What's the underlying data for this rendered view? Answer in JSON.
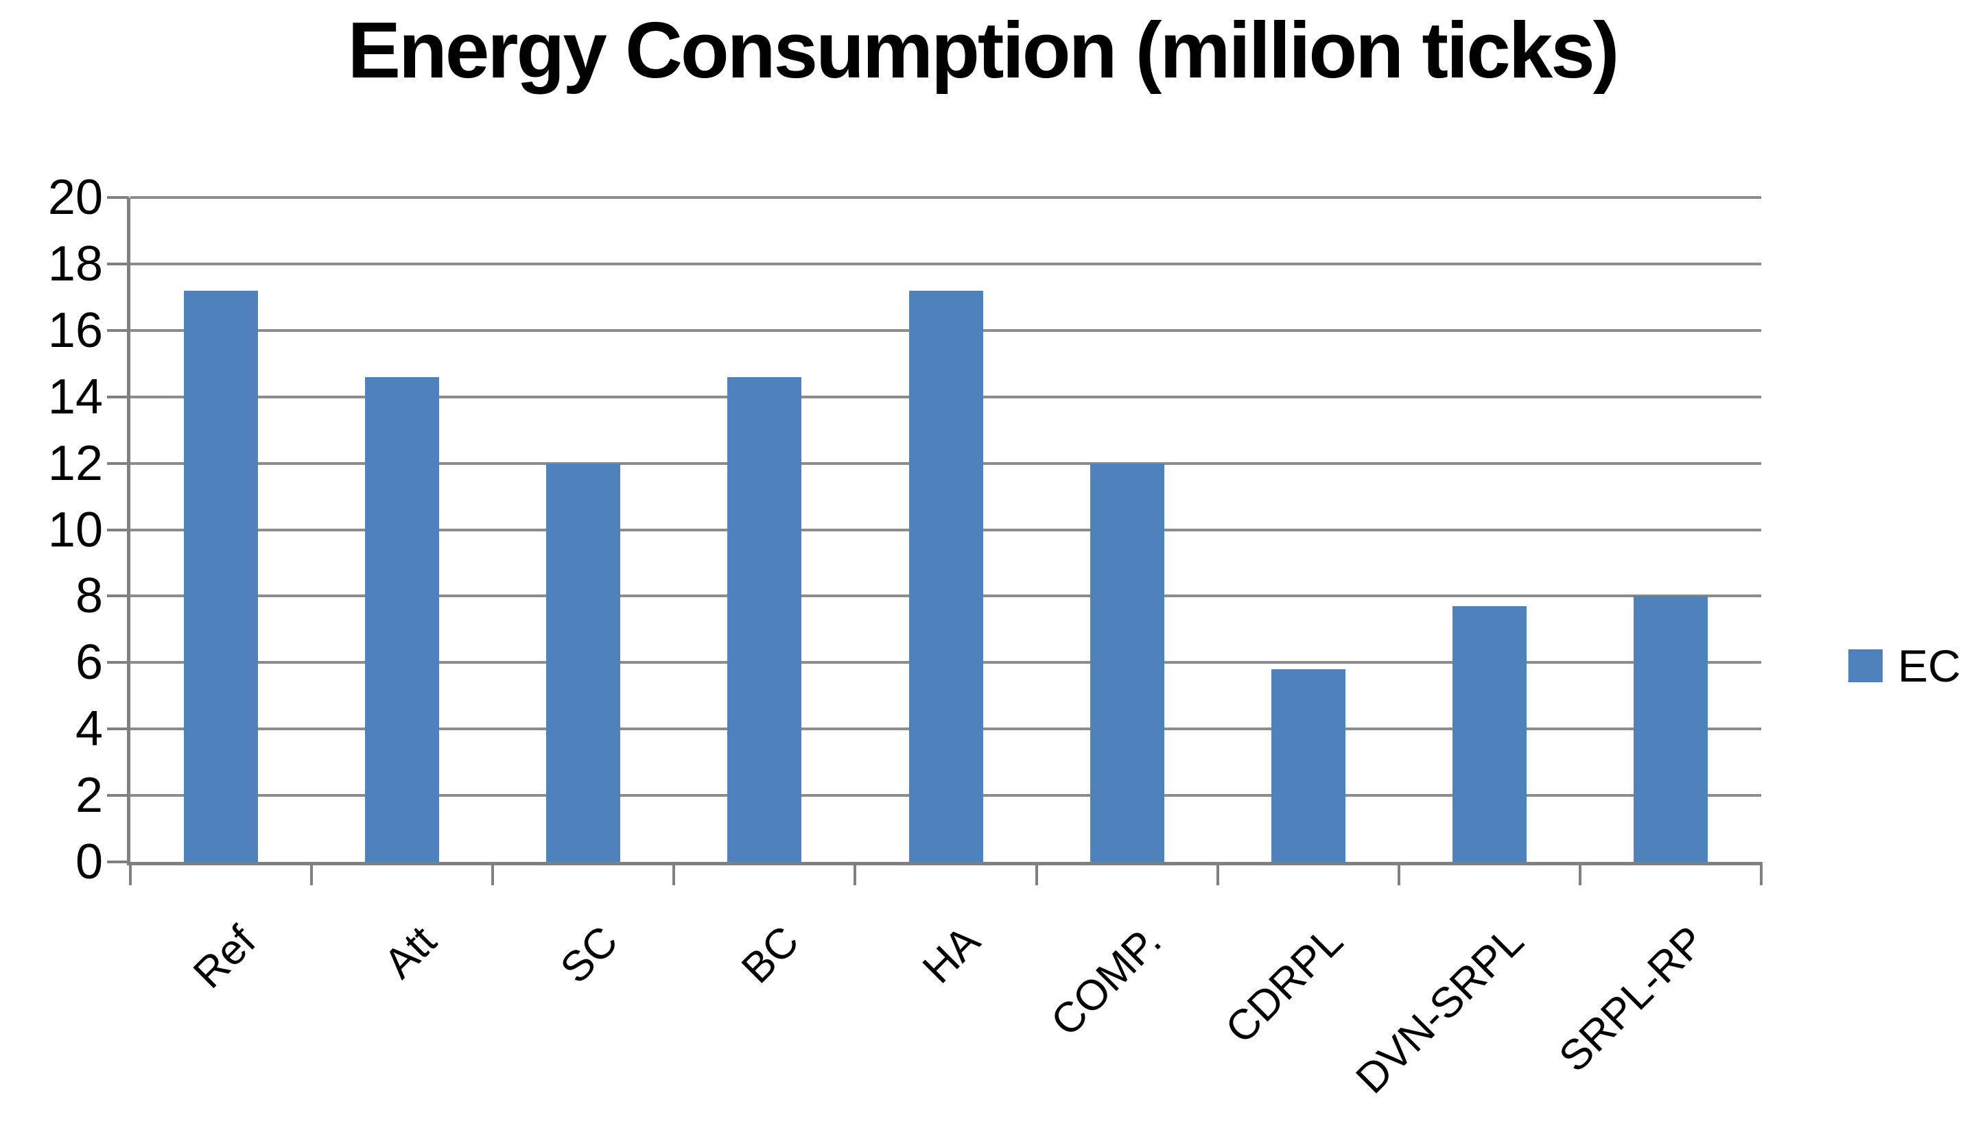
{
  "chart_data": {
    "type": "bar",
    "title": "Energy Consumption (million ticks)",
    "categories": [
      "Ref",
      "Att",
      "SC",
      "BC",
      "HA",
      "COMP.",
      "CDRPL",
      "DVN-SRPL",
      "SRPL-RP"
    ],
    "series": [
      {
        "name": "EC",
        "values": [
          17.2,
          14.6,
          12,
          14.6,
          17.2,
          12,
          5.8,
          7.7,
          8
        ]
      }
    ],
    "xlabel": "",
    "ylabel": "",
    "ylim": [
      0,
      20
    ],
    "yticks": [
      0,
      2,
      4,
      6,
      8,
      10,
      12,
      14,
      16,
      18,
      20
    ],
    "grid": "horizontal gridlines on",
    "legend_position": "right-middle",
    "bar_color": "#4F81BD",
    "gridline_color": "#8C8C8C",
    "axis_color": "#808080",
    "text_color": "#000000",
    "background_color": "#FFFFFF"
  }
}
